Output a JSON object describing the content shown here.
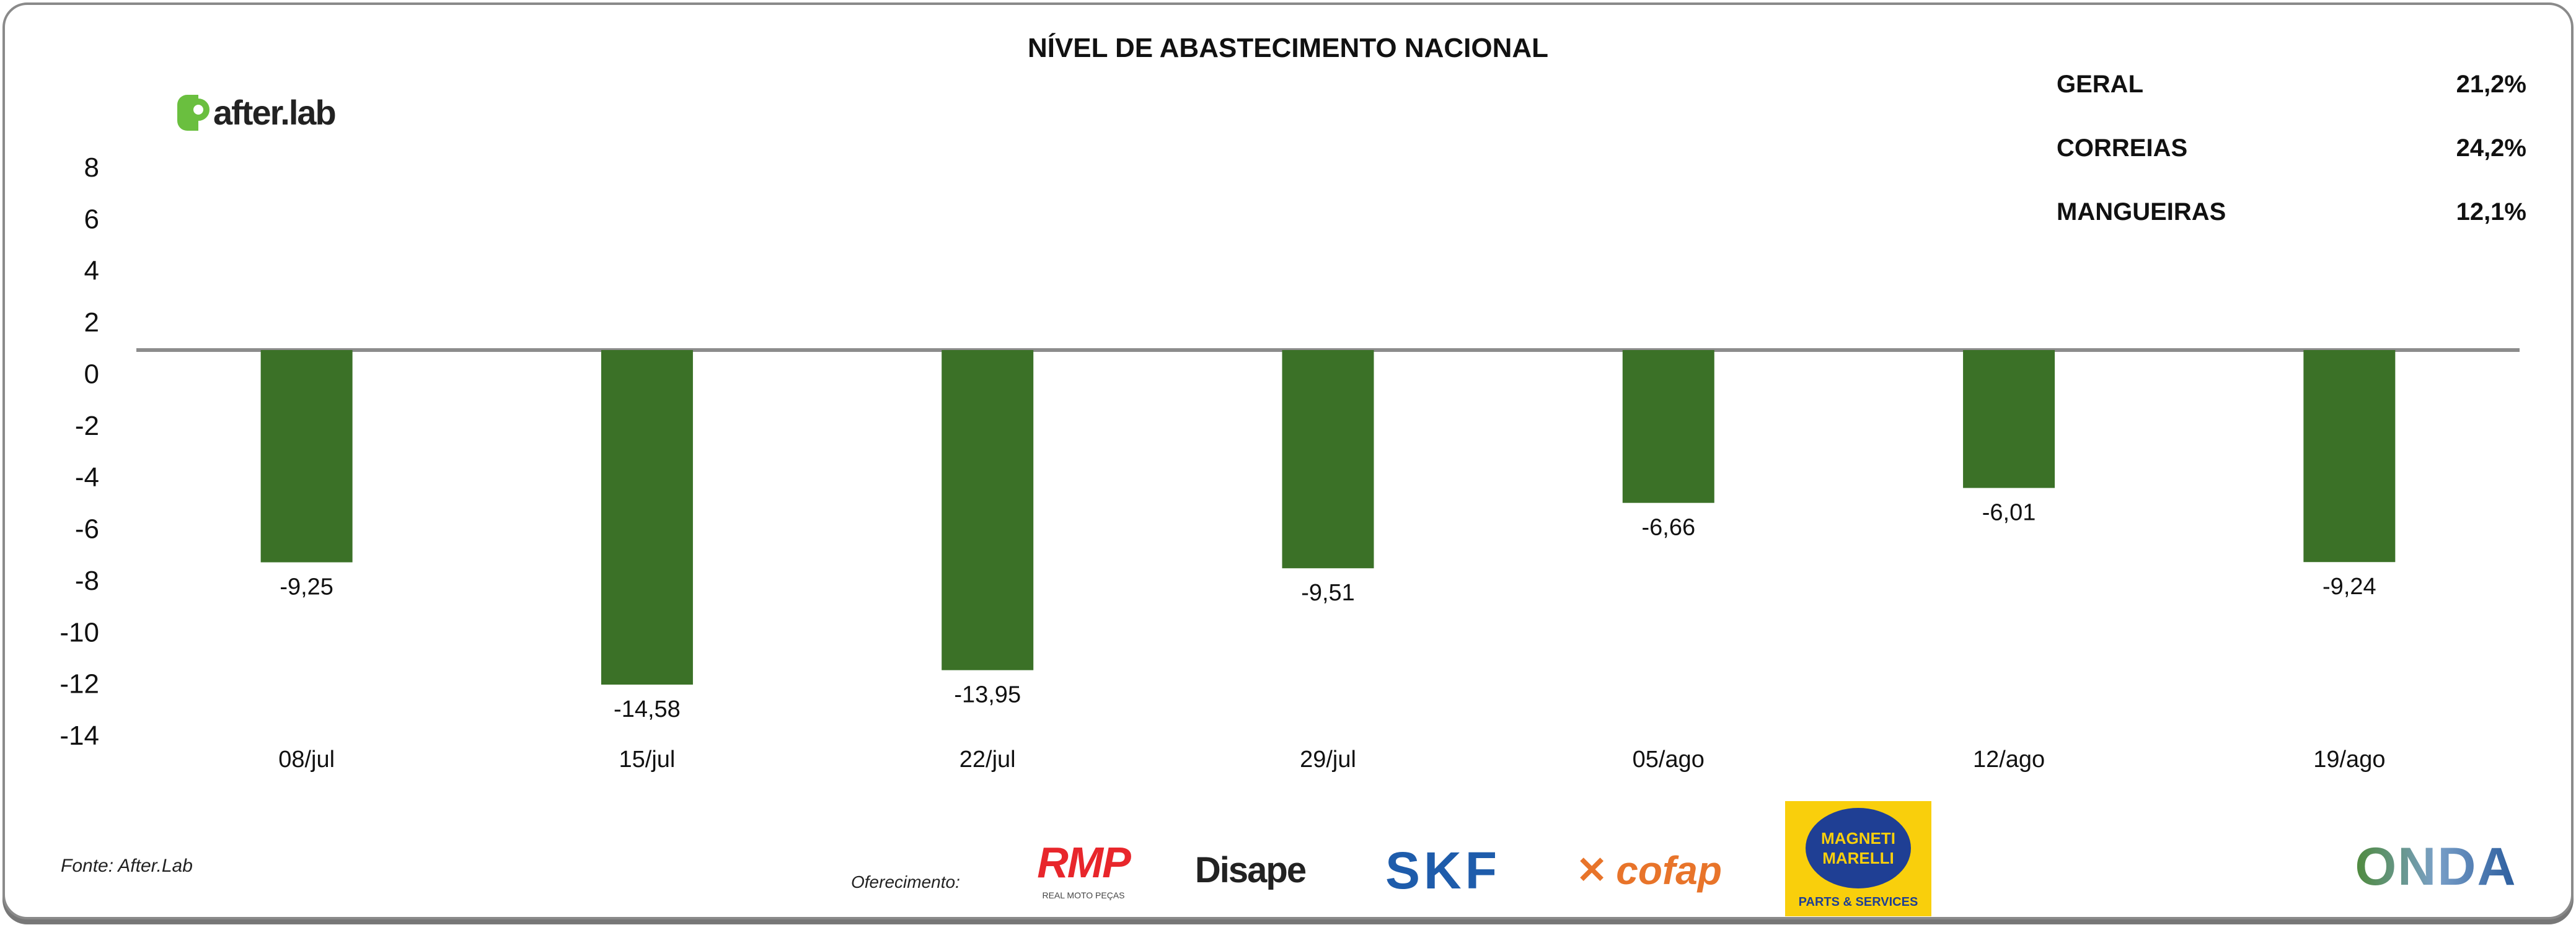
{
  "chart_data": {
    "type": "bar",
    "title": "NÍVEL DE ABASTECIMENTO NACIONAL",
    "categories": [
      "08/jul",
      "15/jul",
      "22/jul",
      "29/jul",
      "05/ago",
      "12/ago",
      "19/ago"
    ],
    "values": [
      -9.25,
      -14.58,
      -13.95,
      -9.51,
      -6.66,
      -6.01,
      -9.24
    ],
    "data_labels": [
      "-9,25",
      "-14,58",
      "-13,95",
      "-9,51",
      "-6,66",
      "-6,01",
      "-9,24"
    ],
    "ylim": [
      -14,
      8
    ],
    "yticks": [
      "8",
      "6",
      "4",
      "2",
      "0",
      "-2",
      "-4",
      "-6",
      "-8",
      "-10",
      "-12",
      "-14"
    ],
    "xlabel": "",
    "ylabel": "",
    "grid": false,
    "bar_color": "#3b7127"
  },
  "summary": [
    {
      "label": "GERAL",
      "value": "21,2%"
    },
    {
      "label": "CORREIAS",
      "value": "24,2%"
    },
    {
      "label": "MANGUEIRAS",
      "value": "12,1%"
    }
  ],
  "brand": {
    "name": "after.lab",
    "color": "#6abf3f"
  },
  "footer": {
    "source": "Fonte: After.Lab",
    "sponsor_label": "Oferecimento:",
    "sponsors": [
      "RMP",
      "Disape",
      "SKF",
      "cofap",
      "MAGNETI MARELLI",
      "ONDA"
    ],
    "rmp_sub": "REAL MOTO PEÇAS",
    "magneti_sub": "PARTS & SERVICES"
  }
}
